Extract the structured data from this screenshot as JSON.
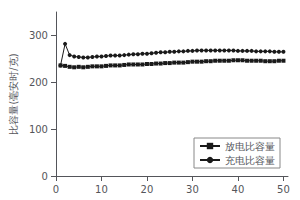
{
  "chart_data": {
    "type": "line",
    "ylabel": "比容量(毫安时/克)",
    "xlim": [
      0,
      51
    ],
    "ylim": [
      0,
      350
    ],
    "xticks": [
      0,
      10,
      20,
      30,
      40,
      50
    ],
    "yticks": [
      0,
      100,
      200,
      300
    ],
    "grid": false,
    "legend": "lower right",
    "x": [
      1,
      2,
      3,
      4,
      5,
      6,
      7,
      8,
      9,
      10,
      11,
      12,
      13,
      14,
      15,
      16,
      17,
      18,
      19,
      20,
      21,
      22,
      23,
      24,
      25,
      26,
      27,
      28,
      29,
      30,
      31,
      32,
      33,
      34,
      35,
      36,
      37,
      38,
      39,
      40,
      41,
      42,
      43,
      44,
      45,
      46,
      47,
      48,
      49,
      50
    ],
    "series": [
      {
        "name": "放电比容量",
        "color": "#1a1a1a",
        "marker": "square",
        "values": [
          236,
          235,
          233,
          232,
          233,
          232,
          233,
          234,
          234,
          234,
          235,
          236,
          236,
          236,
          237,
          238,
          238,
          238,
          238,
          239,
          239,
          240,
          240,
          241,
          241,
          242,
          242,
          242,
          243,
          244,
          244,
          244,
          245,
          245,
          246,
          246,
          246,
          246,
          247,
          247,
          247,
          246,
          246,
          246,
          246,
          245,
          245,
          245,
          246,
          246
        ]
      },
      {
        "name": "充电比容量",
        "color": "#1a1a1a",
        "marker": "circle",
        "values": [
          236,
          282,
          258,
          255,
          254,
          253,
          253,
          254,
          255,
          255,
          256,
          257,
          257,
          257,
          258,
          259,
          260,
          260,
          261,
          261,
          262,
          263,
          264,
          264,
          265,
          265,
          266,
          266,
          267,
          267,
          268,
          268,
          268,
          268,
          268,
          268,
          268,
          268,
          268,
          267,
          267,
          267,
          267,
          266,
          266,
          266,
          266,
          265,
          265,
          265
        ]
      }
    ]
  }
}
